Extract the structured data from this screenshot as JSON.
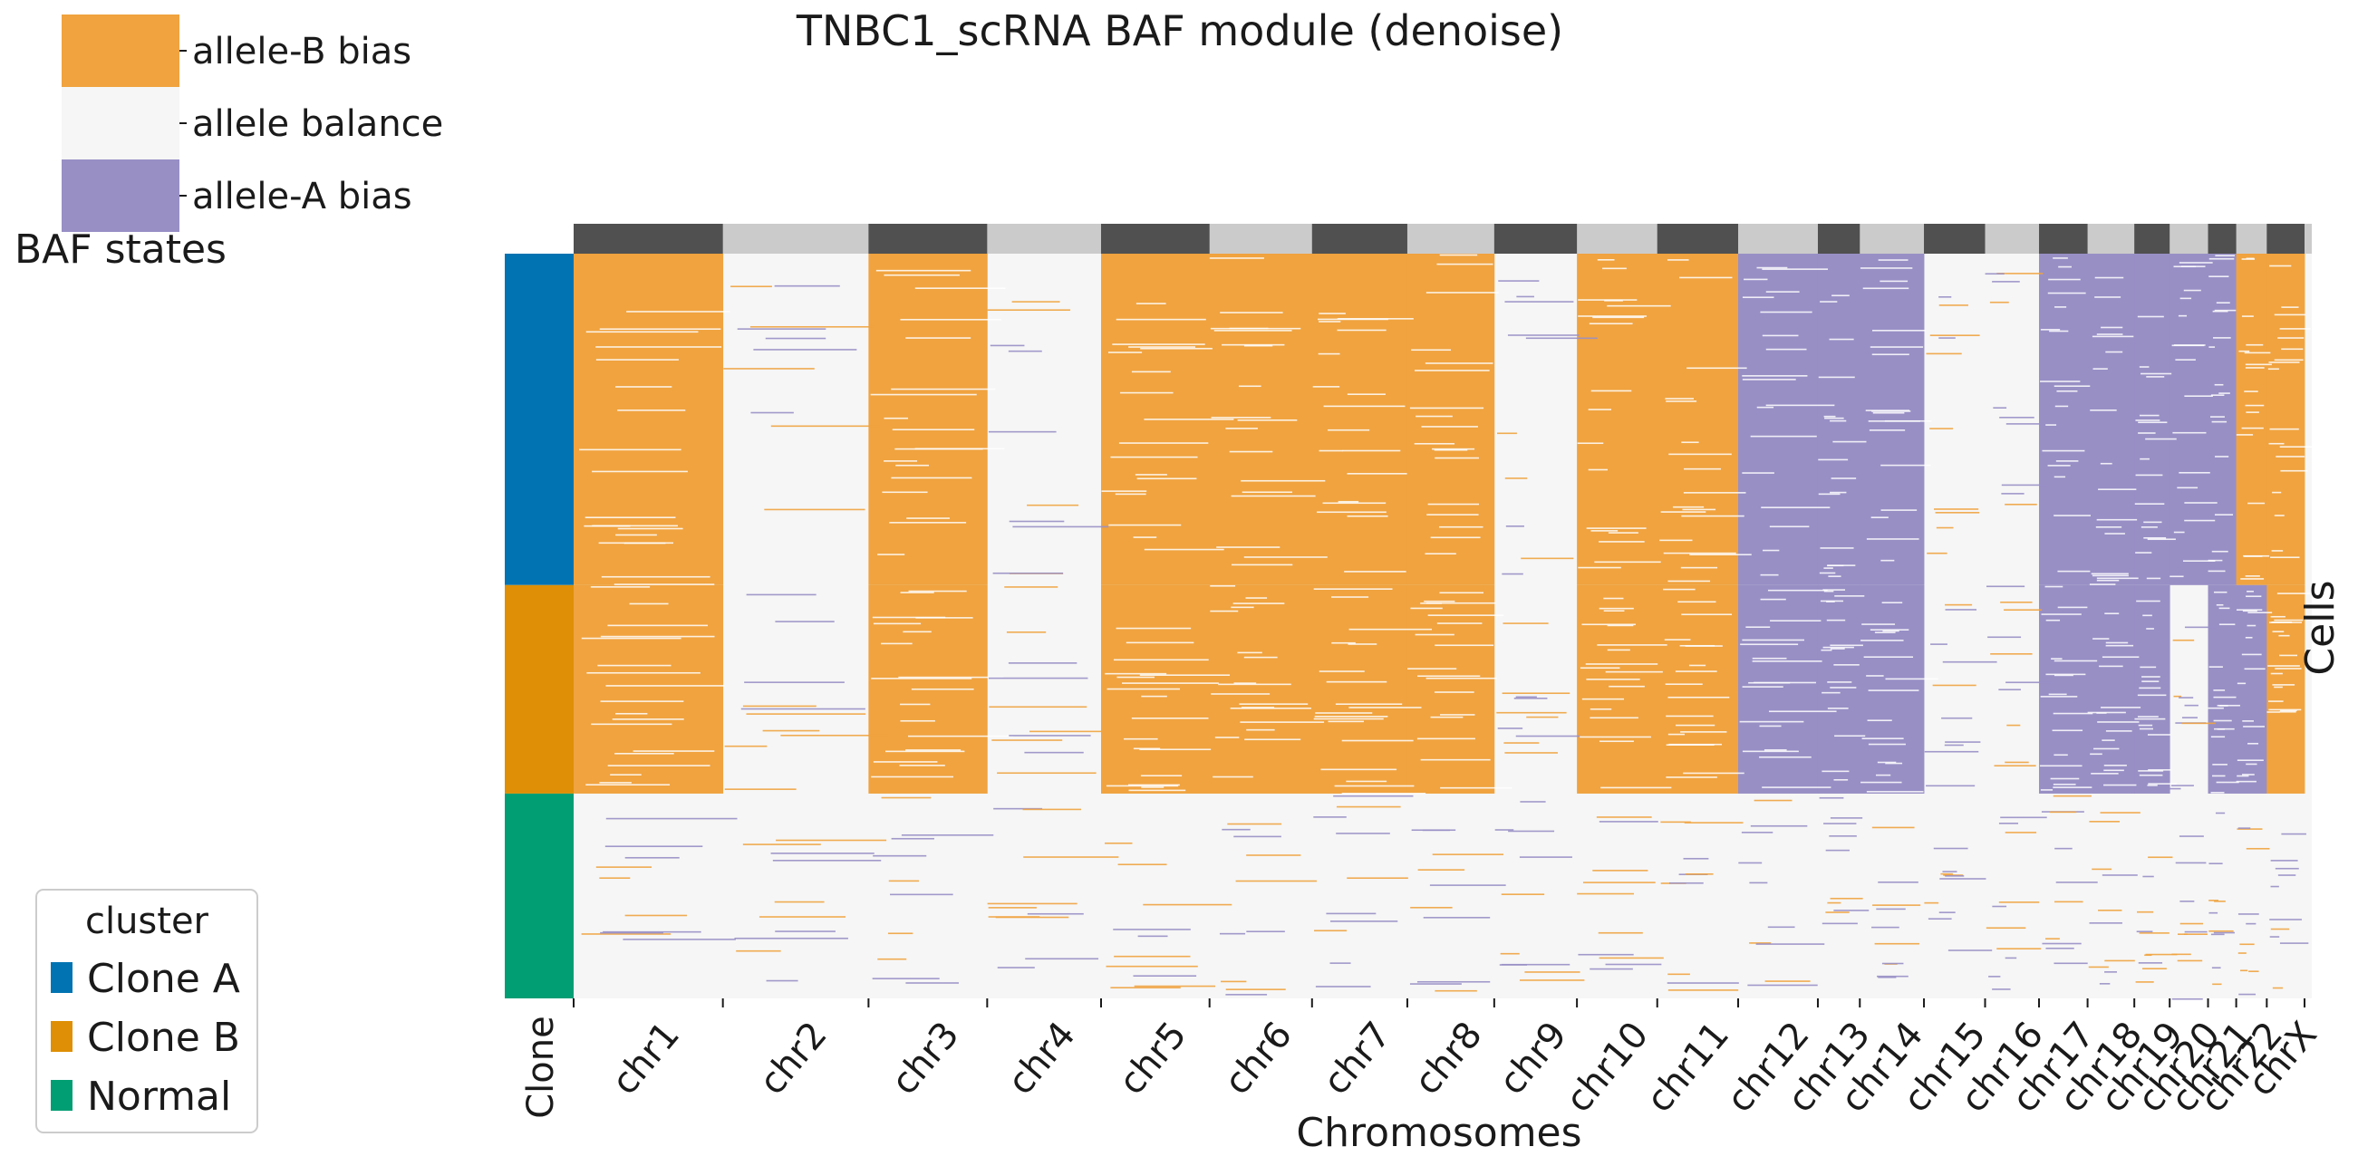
{
  "chart_data": {
    "type": "heatmap",
    "title": "TNBC1_scRNA BAF module (denoise)",
    "xlabel": "Chromosomes",
    "ylabel": "Cells",
    "clone_label": "Clone",
    "legend_states": {
      "title": "BAF states",
      "items": [
        {
          "label": "allele-B bias",
          "color": "#f0a33f"
        },
        {
          "label": "allele balance",
          "color": "#f6f6f6"
        },
        {
          "label": "allele-A bias",
          "color": "#988fc5"
        }
      ]
    },
    "legend_cluster": {
      "title": "cluster",
      "items": [
        {
          "label": "Clone A",
          "color": "#0173b2"
        },
        {
          "label": "Clone B",
          "color": "#de8f05"
        },
        {
          "label": "Normal",
          "color": "#029e73"
        }
      ]
    },
    "clusters": [
      {
        "name": "Clone A",
        "cell_fraction": 0.445
      },
      {
        "name": "Clone B",
        "cell_fraction": 0.28
      },
      {
        "name": "Normal",
        "cell_fraction": 0.275
      }
    ],
    "chromosomes": [
      {
        "name": "chr1",
        "length": 249,
        "A": "B",
        "B": "B",
        "N": "bal"
      },
      {
        "name": "chr2",
        "length": 243,
        "A": "bal",
        "B": "bal",
        "N": "bal"
      },
      {
        "name": "chr3",
        "length": 198,
        "A": "B",
        "B": "B",
        "N": "bal"
      },
      {
        "name": "chr4",
        "length": 190,
        "A": "bal",
        "B": "bal",
        "N": "bal"
      },
      {
        "name": "chr5",
        "length": 181,
        "A": "B",
        "B": "B",
        "N": "bal"
      },
      {
        "name": "chr6",
        "length": 171,
        "A": "B",
        "B": "B",
        "N": "bal"
      },
      {
        "name": "chr7",
        "length": 159,
        "A": "B",
        "B": "B",
        "N": "bal"
      },
      {
        "name": "chr8",
        "length": 145,
        "A": "B",
        "B": "B",
        "N": "bal"
      },
      {
        "name": "chr9",
        "length": 138,
        "A": "bal",
        "B": "bal",
        "N": "bal"
      },
      {
        "name": "chr10",
        "length": 134,
        "A": "B",
        "B": "B",
        "N": "bal"
      },
      {
        "name": "chr11",
        "length": 135,
        "A": "B",
        "B": "B",
        "N": "bal"
      },
      {
        "name": "chr12",
        "length": 133,
        "A": "A",
        "B": "A",
        "N": "bal"
      },
      {
        "name": "chr13",
        "length": 70,
        "A": "A",
        "B": "A",
        "N": "bal"
      },
      {
        "name": "chr14",
        "length": 107,
        "A": "A",
        "B": "A",
        "N": "bal"
      },
      {
        "name": "chr15",
        "length": 102,
        "A": "bal",
        "B": "bal",
        "N": "bal"
      },
      {
        "name": "chr16",
        "length": 90,
        "A": "bal",
        "B": "bal",
        "N": "bal"
      },
      {
        "name": "chr17",
        "length": 81,
        "A": "A",
        "B": "A",
        "N": "bal"
      },
      {
        "name": "chr18",
        "length": 78,
        "A": "A",
        "B": "A",
        "N": "bal"
      },
      {
        "name": "chr19",
        "length": 59,
        "A": "A",
        "B": "A",
        "N": "bal"
      },
      {
        "name": "chr20",
        "length": 64,
        "A": "A",
        "B": "bal",
        "N": "bal"
      },
      {
        "name": "chr21",
        "length": 47,
        "A": "A",
        "B": "A",
        "N": "bal"
      },
      {
        "name": "chr22",
        "length": 51,
        "A": "B",
        "B": "A",
        "N": "bal"
      },
      {
        "name": "chrX",
        "length": 63,
        "A": "B",
        "B": "B",
        "N": "bal"
      }
    ]
  }
}
